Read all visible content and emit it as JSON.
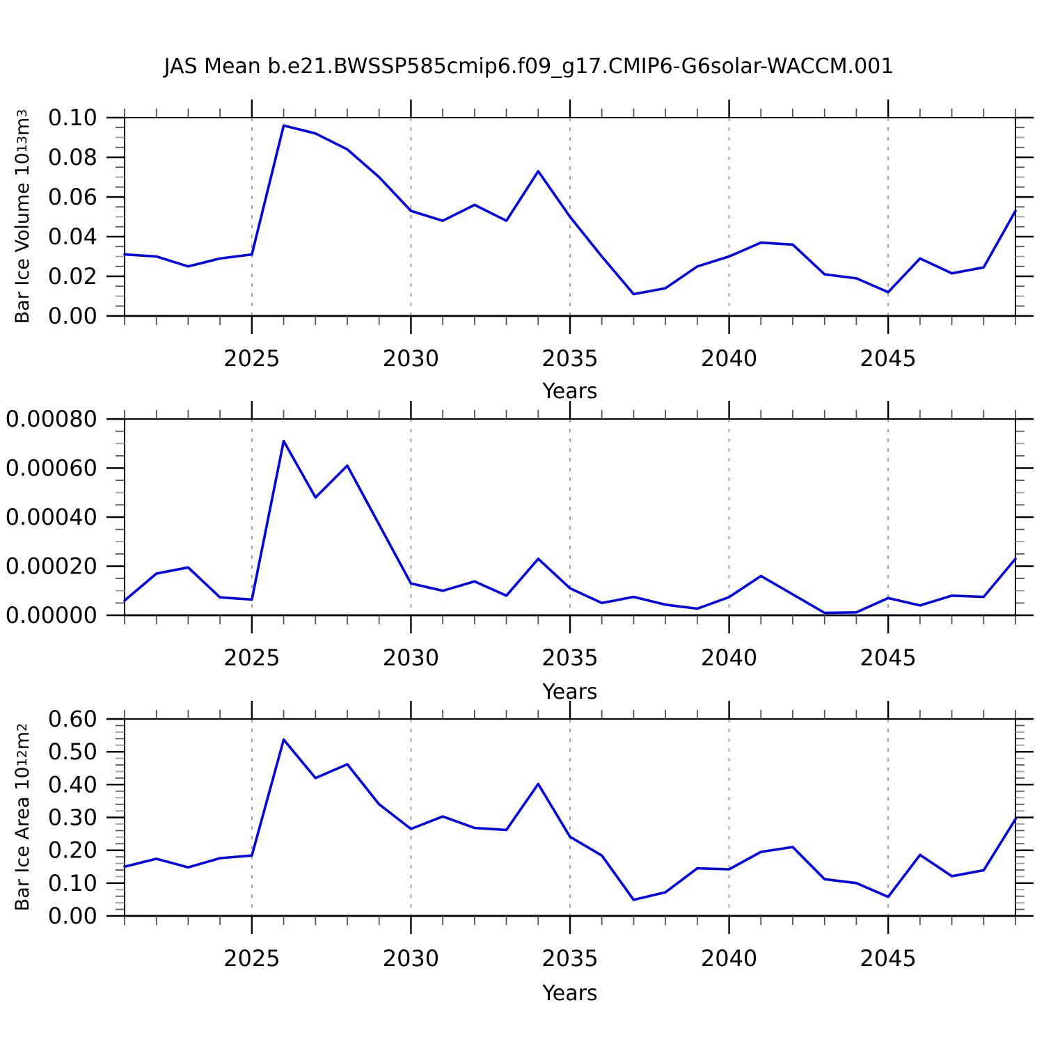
{
  "page": {
    "title": "JAS Mean b.e21.BWSSP585cmip6.f09_g17.CMIP6-G6solar-WACCM.001"
  },
  "chart_data": [
    {
      "type": "line",
      "name": "bar-ice-volume",
      "ylabel_prefix": "Bar Ice Volume 10",
      "ylabel_exp": "13",
      "ylabel_unit": " m",
      "ylabel_unit_exp": "3",
      "xlabel": "Years",
      "line_color": "#0000EE",
      "grid": "dashed-vertical-at-major-x",
      "legend": "none",
      "xlim": [
        2021,
        2049
      ],
      "ylim": [
        0,
        0.1
      ],
      "yminor_step": 0.005,
      "xminor_step": 1,
      "xtick_values": [
        2025,
        2030,
        2035,
        2040,
        2045
      ],
      "xtick_labels": [
        "2025",
        "2030",
        "2035",
        "2040",
        "2045"
      ],
      "ytick_values": [
        0.0,
        0.02,
        0.04,
        0.06,
        0.08,
        0.1
      ],
      "ytick_labels": [
        "0.00",
        "0.02",
        "0.04",
        "0.06",
        "0.08",
        "0.10"
      ],
      "x": [
        2021,
        2022,
        2023,
        2024,
        2025,
        2026,
        2027,
        2028,
        2029,
        2030,
        2031,
        2032,
        2033,
        2034,
        2035,
        2036,
        2037,
        2038,
        2039,
        2040,
        2041,
        2042,
        2043,
        2044,
        2045,
        2046,
        2047,
        2048,
        2049
      ],
      "values": [
        0.031,
        0.03,
        0.025,
        0.029,
        0.031,
        0.096,
        0.092,
        0.084,
        0.07,
        0.053,
        0.048,
        0.056,
        0.048,
        0.073,
        0.05,
        0.03,
        0.011,
        0.014,
        0.025,
        0.03,
        0.037,
        0.036,
        0.021,
        0.019,
        0.012,
        0.029,
        0.0215,
        0.0245,
        0.053
      ]
    },
    {
      "type": "line",
      "name": "middle-series",
      "ylabel_prefix": "",
      "ylabel_exp": "",
      "ylabel_unit": "",
      "ylabel_unit_exp": "",
      "xlabel": "Years",
      "line_color": "#0000EE",
      "grid": "dashed-vertical-at-major-x",
      "legend": "none",
      "xlim": [
        2021,
        2049
      ],
      "ylim": [
        0,
        0.0008
      ],
      "yminor_step": 5e-05,
      "xminor_step": 1,
      "xtick_values": [
        2025,
        2030,
        2035,
        2040,
        2045
      ],
      "xtick_labels": [
        "2025",
        "2030",
        "2035",
        "2040",
        "2045"
      ],
      "ytick_values": [
        0.0,
        0.0002,
        0.0004,
        0.0006,
        0.0008
      ],
      "ytick_labels": [
        "0.00000",
        "0.00020",
        "0.00040",
        "0.00060",
        "0.00080"
      ],
      "x": [
        2021,
        2022,
        2023,
        2024,
        2025,
        2026,
        2027,
        2028,
        2029,
        2030,
        2031,
        2032,
        2033,
        2034,
        2035,
        2036,
        2037,
        2038,
        2039,
        2040,
        2041,
        2042,
        2043,
        2044,
        2045,
        2046,
        2047,
        2048,
        2049
      ],
      "values": [
        6e-05,
        0.00017,
        0.000195,
        7.3e-05,
        6.4e-05,
        0.00071,
        0.00048,
        0.00061,
        0.00037,
        0.00013,
        0.0001,
        0.000138,
        8e-05,
        0.00023,
        0.00011,
        5e-05,
        7.5e-05,
        4.3e-05,
        2.7e-05,
        7.4e-05,
        0.00016,
        8.5e-05,
        1e-05,
        1.2e-05,
        7e-05,
        4e-05,
        8e-05,
        7.5e-05,
        0.00023
      ]
    },
    {
      "type": "line",
      "name": "bar-ice-area",
      "ylabel_prefix": "Bar Ice Area 10",
      "ylabel_exp": "12",
      "ylabel_unit": " m",
      "ylabel_unit_exp": "2",
      "xlabel": "Years",
      "line_color": "#0000EE",
      "grid": "dashed-vertical-at-major-x",
      "legend": "none",
      "xlim": [
        2021,
        2049
      ],
      "ylim": [
        0,
        0.6
      ],
      "yminor_step": 0.02,
      "xminor_step": 1,
      "xtick_values": [
        2025,
        2030,
        2035,
        2040,
        2045
      ],
      "xtick_labels": [
        "2025",
        "2030",
        "2035",
        "2040",
        "2045"
      ],
      "ytick_values": [
        0.0,
        0.1,
        0.2,
        0.3,
        0.4,
        0.5,
        0.6
      ],
      "ytick_labels": [
        "0.00",
        "0.10",
        "0.20",
        "0.30",
        "0.40",
        "0.50",
        "0.60"
      ],
      "x": [
        2021,
        2022,
        2023,
        2024,
        2025,
        2026,
        2027,
        2028,
        2029,
        2030,
        2031,
        2032,
        2033,
        2034,
        2035,
        2036,
        2037,
        2038,
        2039,
        2040,
        2041,
        2042,
        2043,
        2044,
        2045,
        2046,
        2047,
        2048,
        2049
      ],
      "values": [
        0.15,
        0.174,
        0.148,
        0.176,
        0.184,
        0.537,
        0.42,
        0.462,
        0.34,
        0.265,
        0.303,
        0.268,
        0.262,
        0.402,
        0.241,
        0.184,
        0.049,
        0.072,
        0.145,
        0.142,
        0.195,
        0.21,
        0.112,
        0.1,
        0.058,
        0.186,
        0.121,
        0.139,
        0.295
      ]
    }
  ]
}
